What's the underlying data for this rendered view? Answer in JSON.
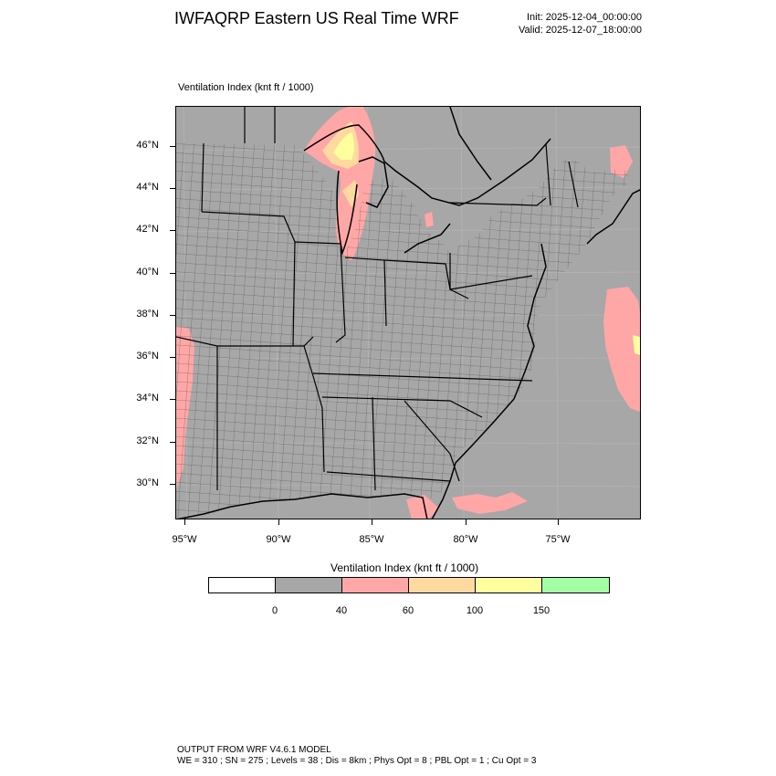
{
  "header": {
    "title": "IWFAQRP Eastern US Real Time WRF",
    "init": "Init: 2025-12-04_00:00:00",
    "valid": "Valid: 2025-12-07_18:00:00"
  },
  "plot": {
    "title": "Ventilation Index   (knt ft / 1000)"
  },
  "axes": {
    "lat_labels": [
      "46°N",
      "44°N",
      "42°N",
      "40°N",
      "38°N",
      "36°N",
      "34°N",
      "32°N",
      "30°N"
    ],
    "lon_labels": [
      "95°W",
      "90°W",
      "85°W",
      "80°W",
      "75°W"
    ]
  },
  "map": {
    "base_color": "#a7a7a7",
    "shading_classes": [
      {
        "range": "< 0",
        "color": "#ffffff"
      },
      {
        "range": "0-40",
        "color": "#a7a7a7"
      },
      {
        "range": "40-60",
        "color": "#ffa6a6"
      },
      {
        "range": "60-100",
        "color": "#ffd9a0"
      },
      {
        "range": "100-150",
        "color": "#ffff9e"
      },
      {
        "range": ">150",
        "color": "#a3ffa3"
      }
    ]
  },
  "legend": {
    "title": "Ventilation Index  (knt ft / 1000)",
    "colors": [
      "#ffffff",
      "#a7a7a7",
      "#ffa6a6",
      "#ffd9a0",
      "#ffff9e",
      "#a3ffa3"
    ],
    "labels": [
      "0",
      "40",
      "60",
      "100",
      "150"
    ]
  },
  "footer": {
    "line1": "OUTPUT FROM WRF V4.6.1 MODEL",
    "line2": "WE = 310 ; SN = 275 ; Levels = 38 ; Dis = 8km ; Phys Opt = 8 ; PBL Opt = 1 ; Cu Opt = 3"
  }
}
